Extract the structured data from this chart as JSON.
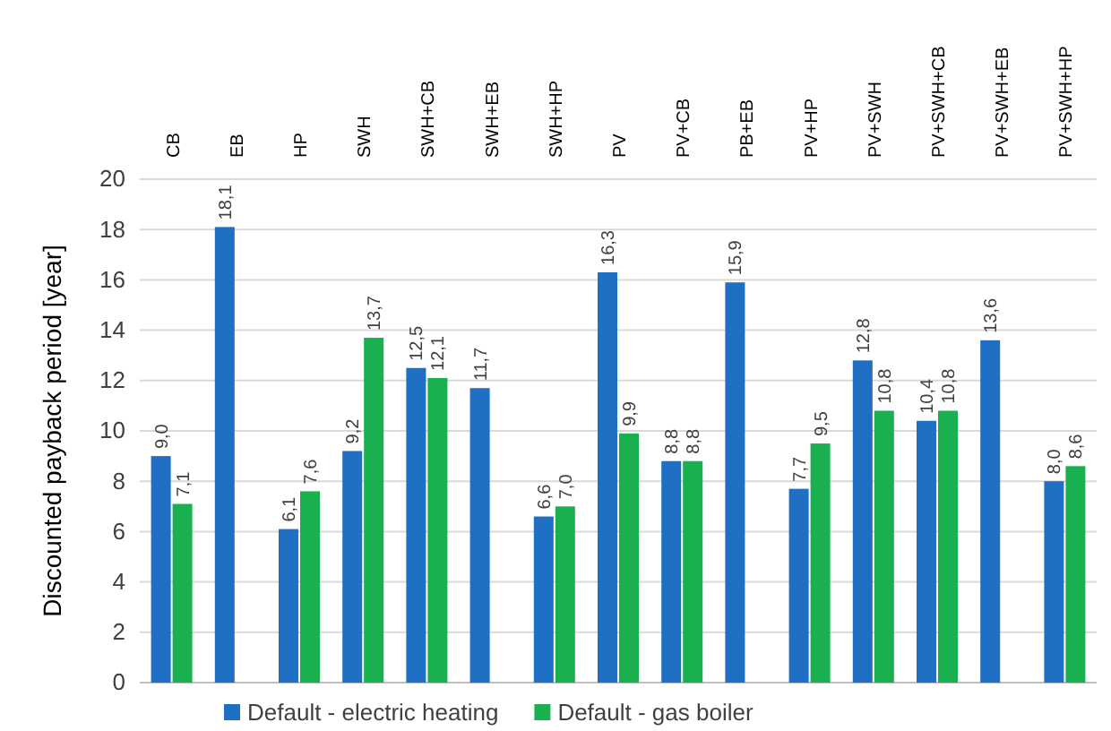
{
  "chart_data": {
    "type": "bar",
    "ylabel": "Discounted payback period [year]",
    "categories": [
      "CB",
      "EB",
      "HP",
      "SWH",
      "SWH+CB",
      "SWH+EB",
      "SWH+HP",
      "PV",
      "PV+CB",
      "PB+EB",
      "PV+HP",
      "PV+SWH",
      "PV+SWH+CB",
      "PV+SWH+EB",
      "PV+SWH+HP"
    ],
    "series": [
      {
        "name": "Default - electric heating",
        "color": "#1f6fc4",
        "values": [
          9.0,
          18.1,
          6.1,
          9.2,
          12.5,
          11.7,
          6.6,
          16.3,
          8.8,
          15.9,
          7.7,
          12.8,
          10.4,
          13.6,
          8.0
        ],
        "value_labels": [
          "9,0",
          "18,1",
          "6,1",
          "9,2",
          "12,5",
          "11,7",
          "6,6",
          "16,3",
          "8,8",
          "15,9",
          "7,7",
          "12,8",
          "10,4",
          "13,6",
          "8,0"
        ]
      },
      {
        "name": "Default - gas boiler",
        "color": "#1aaf4f",
        "values": [
          7.1,
          null,
          7.6,
          13.7,
          12.1,
          null,
          7.0,
          9.9,
          8.8,
          null,
          9.5,
          10.8,
          10.8,
          null,
          8.6
        ],
        "value_labels": [
          "7,1",
          null,
          "7,6",
          "13,7",
          "12,1",
          null,
          "7,0",
          "9,9",
          "8,8",
          null,
          "9,5",
          "10,8",
          "10,8",
          null,
          "8,6"
        ]
      }
    ],
    "ylim": [
      0,
      20
    ],
    "yticks": [
      0,
      2,
      4,
      6,
      8,
      10,
      12,
      14,
      16,
      18,
      20
    ],
    "grid": "y",
    "legend": "bottom"
  }
}
